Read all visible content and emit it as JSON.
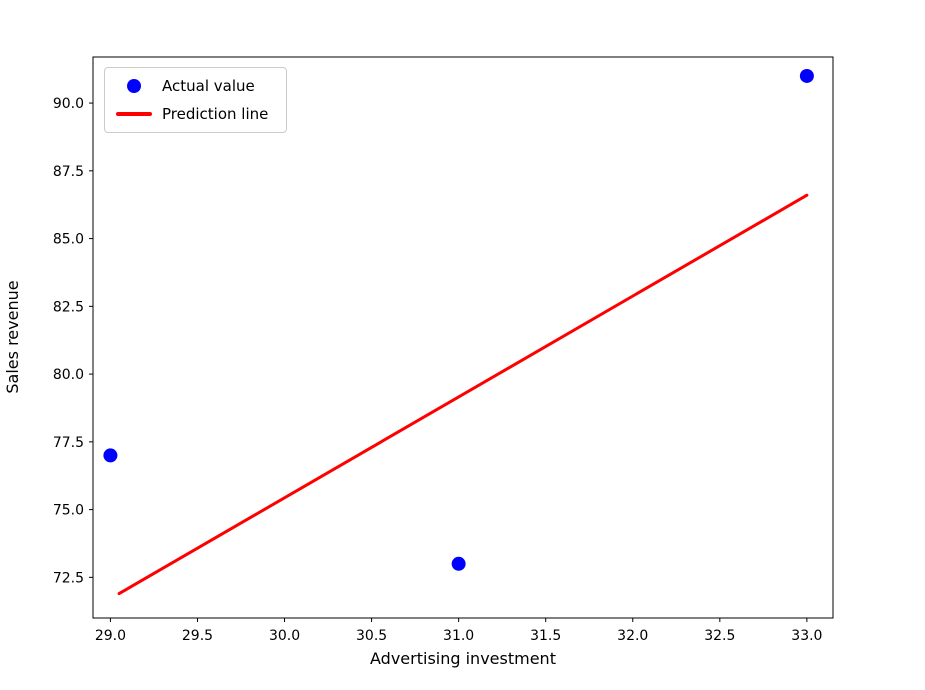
{
  "chart_data": {
    "type": "scatter",
    "title": "",
    "xlabel": "Advertising investment",
    "ylabel": "Sales revenue",
    "xlim": [
      28.9,
      33.15
    ],
    "ylim": [
      71.0,
      91.7
    ],
    "x_ticks": [
      29.0,
      29.5,
      30.0,
      30.5,
      31.0,
      31.5,
      32.0,
      32.5,
      33.0
    ],
    "y_ticks": [
      72.5,
      75.0,
      77.5,
      80.0,
      82.5,
      85.0,
      87.5,
      90.0
    ],
    "grid": false,
    "legend": {
      "position": "upper left",
      "entries": [
        "Actual value",
        "Prediction line"
      ]
    },
    "series": [
      {
        "name": "Actual value",
        "type": "scatter",
        "color": "#0000ff",
        "points": [
          [
            29.0,
            77.0
          ],
          [
            31.0,
            73.0
          ],
          [
            33.0,
            91.0
          ]
        ]
      },
      {
        "name": "Prediction line",
        "type": "line",
        "color": "#ff0000",
        "points": [
          [
            29.05,
            71.9
          ],
          [
            33.0,
            86.6
          ]
        ]
      }
    ]
  },
  "colors": {
    "background": "#ffffff",
    "axis": "#000000",
    "marker": "#0000ff",
    "prediction_line": "#ff0000",
    "legend_border": "#cccccc"
  }
}
